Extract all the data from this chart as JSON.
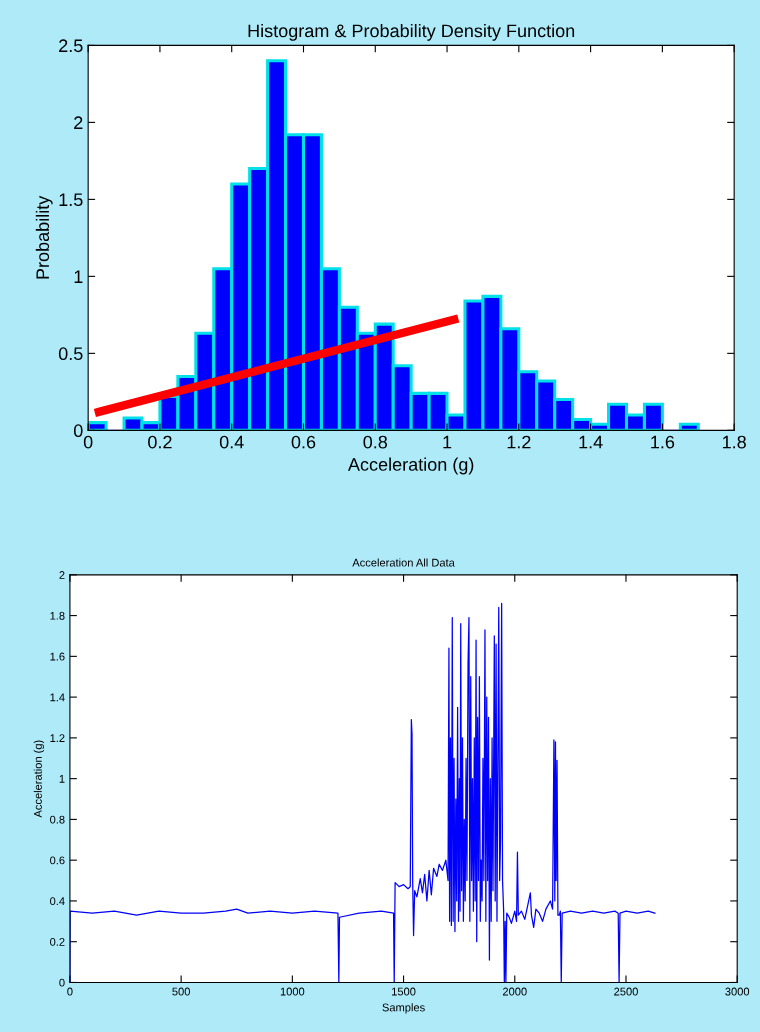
{
  "chart_data": [
    {
      "type": "histogram",
      "title": "Histogram & Probability Density Function",
      "xlabel": "Acceleration (g)",
      "ylabel": "Probability",
      "bins": [
        0,
        0.05,
        0.1,
        0.15,
        0.2,
        0.25,
        0.3,
        0.35,
        0.4,
        0.45,
        0.5,
        0.55,
        0.6,
        0.65,
        0.7,
        0.75,
        0.8,
        0.85,
        0.9,
        0.95,
        1.0,
        1.05,
        1.1,
        1.15,
        1.2,
        1.25,
        1.3,
        1.35,
        1.4,
        1.45,
        1.5,
        1.55,
        1.6,
        1.65,
        1.7
      ],
      "series": [
        {
          "type": "histogram",
          "color": "#0000ff",
          "values": [
            0.05,
            0,
            0.08,
            0.05,
            0.22,
            0.35,
            0.63,
            1.05,
            1.6,
            1.7,
            2.4,
            1.92,
            1.92,
            1.05,
            0.8,
            0.63,
            0.69,
            0.42,
            0.24,
            0.24,
            0.1,
            0.84,
            0.87,
            0.66,
            0.38,
            0.32,
            0.2,
            0.07,
            0.04,
            0.17,
            0.1,
            0.17,
            0,
            0.04
          ]
        },
        {
          "type": "line",
          "color": "#ff0000",
          "x": [
            0.03,
            1.02
          ],
          "values": [
            0.12,
            0.72
          ]
        }
      ],
      "xlim": [
        0,
        1.8
      ],
      "xticks": [
        0,
        0.2,
        0.4,
        0.6,
        0.8,
        1,
        1.2,
        1.4,
        1.6,
        1.8
      ],
      "ylim": [
        0,
        2.5
      ],
      "yticks": [
        0,
        0.5,
        1,
        1.5,
        2,
        2.5
      ],
      "grid": false
    },
    {
      "type": "line",
      "title": "Acceleration All Data",
      "xlabel": "Samples",
      "ylabel": "Acceleration (g)",
      "series": [
        {
          "color": "#0000ff",
          "x": [
            0,
            1,
            100,
            200,
            300,
            400,
            500,
            600,
            700,
            750,
            800,
            900,
            1000,
            1100,
            1205,
            1209,
            1212,
            1300,
            1400,
            1455,
            1458,
            1462,
            1480,
            1500,
            1520,
            1530,
            1535,
            1538,
            1541,
            1545,
            1550,
            1560,
            1575,
            1585,
            1595,
            1605,
            1615,
            1625,
            1635,
            1650,
            1660,
            1675,
            1690,
            1700,
            1704,
            1707,
            1711,
            1715,
            1719,
            1723,
            1727,
            1731,
            1735,
            1739,
            1743,
            1747,
            1751,
            1754,
            1757,
            1761,
            1765,
            1769,
            1773,
            1777,
            1781,
            1785,
            1790,
            1794,
            1798,
            1802,
            1806,
            1810,
            1814,
            1818,
            1822,
            1826,
            1829,
            1833,
            1837,
            1841,
            1845,
            1849,
            1853,
            1857,
            1861,
            1866,
            1870,
            1874,
            1878,
            1882,
            1886,
            1890,
            1894,
            1898,
            1902,
            1908,
            1912,
            1916,
            1920,
            1924,
            1928,
            1932,
            1936,
            1941,
            1945,
            1950,
            1953,
            1957,
            1960,
            1964,
            1975,
            1985,
            2000,
            2008,
            2012,
            2016,
            2030,
            2045,
            2070,
            2075,
            2085,
            2095,
            2110,
            2125,
            2140,
            2160,
            2170,
            2176,
            2180,
            2183,
            2186,
            2190,
            2194,
            2200,
            2205,
            2209,
            2213,
            2250,
            2300,
            2350,
            2400,
            2450,
            2465,
            2469,
            2473,
            2500,
            2550,
            2600,
            2630
          ],
          "values": [
            0,
            0.35,
            0.34,
            0.35,
            0.33,
            0.35,
            0.34,
            0.34,
            0.35,
            0.36,
            0.34,
            0.35,
            0.34,
            0.35,
            0.34,
            0,
            0.32,
            0.34,
            0.35,
            0.34,
            0,
            0.49,
            0.47,
            0.48,
            0.46,
            0.47,
            1.29,
            1.22,
            0.5,
            0.23,
            0.45,
            0.42,
            0.51,
            0.44,
            0.53,
            0.4,
            0.55,
            0.43,
            0.56,
            0.52,
            0.58,
            0.55,
            0.6,
            0.5,
            1.64,
            0.3,
            1.2,
            0.28,
            1.79,
            0.3,
            1.1,
            0.25,
            0.9,
            0.4,
            1.35,
            0.3,
            1.0,
            0.35,
            1.76,
            0.45,
            1.2,
            0.3,
            0.8,
            0.4,
            1.1,
            0.5,
            1.57,
            1.79,
            0.3,
            1.5,
            0.5,
            1.0,
            0.35,
            1.2,
            0.4,
            1.68,
            0.2,
            1.3,
            0.5,
            1.5,
            0.3,
            0.6,
            0.4,
            1.1,
            0.5,
            1.73,
            0.3,
            1.4,
            0.5,
            1.3,
            0.11,
            1.0,
            0.3,
            1.2,
            0.45,
            1.7,
            0.4,
            1.66,
            0.3,
            1.1,
            1.84,
            0.5,
            0.7,
            1.86,
            0.5,
            0.35,
            0,
            0.3,
            0,
            0.34,
            0.32,
            0.29,
            0.35,
            0.3,
            0.64,
            0.33,
            0.35,
            0.31,
            0.44,
            0.33,
            0.27,
            0.36,
            0.34,
            0.3,
            0.36,
            0.4,
            0.36,
            1.19,
            0.4,
            1.18,
            0.5,
            1.09,
            0.33,
            0.33,
            0.35,
            0,
            0.34,
            0.35,
            0.34,
            0.35,
            0.34,
            0.35,
            0.34,
            0,
            0.34,
            0.35,
            0.34,
            0.35,
            0.34
          ]
        }
      ],
      "xlim": [
        0,
        3000
      ],
      "xticks": [
        0,
        500,
        1000,
        1500,
        2000,
        2500,
        3000
      ],
      "ylim": [
        0,
        2
      ],
      "yticks": [
        0,
        0.2,
        0.4,
        0.6,
        0.8,
        1,
        1.2,
        1.4,
        1.6,
        1.8,
        2
      ],
      "grid": false,
      "marker": "none"
    }
  ]
}
